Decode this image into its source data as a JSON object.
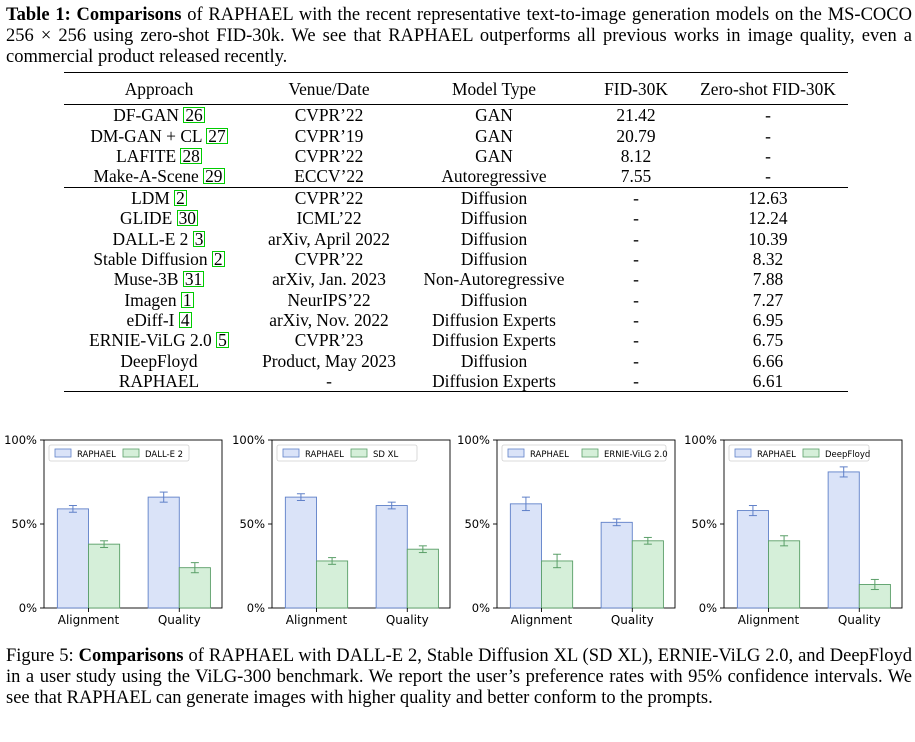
{
  "table": {
    "caption_label": "Table 1:",
    "caption_bold": "Comparisons",
    "caption_text": " of RAPHAEL with the recent representative text-to-image generation models on the MS-COCO 256 × 256 using zero-shot FID-30k. We see that RAPHAEL outperforms all previous works in image quality, even a commercial product released recently.",
    "headers": [
      "Approach",
      "Venue/Date",
      "Model Type",
      "FID-30K",
      "Zero-shot FID-30K"
    ],
    "group1": [
      {
        "name": "DF-GAN",
        "cite": "26",
        "venue": "CVPR’22",
        "type": "GAN",
        "fid": "21.42",
        "zs": "-"
      },
      {
        "name": "DM-GAN + CL",
        "cite": "27",
        "venue": "CVPR’19",
        "type": "GAN",
        "fid": "20.79",
        "zs": "-"
      },
      {
        "name": "LAFITE",
        "cite": "28",
        "venue": "CVPR’22",
        "type": "GAN",
        "fid": "8.12",
        "zs": "-"
      },
      {
        "name": "Make-A-Scene",
        "cite": "29",
        "venue": "ECCV’22",
        "type": "Autoregressive",
        "fid": "7.55",
        "zs": "-"
      }
    ],
    "group2": [
      {
        "name": "LDM",
        "cite": "2",
        "venue": "CVPR’22",
        "type": "Diffusion",
        "fid": "-",
        "zs": "12.63"
      },
      {
        "name": "GLIDE",
        "cite": "30",
        "venue": "ICML’22",
        "type": "Diffusion",
        "fid": "-",
        "zs": "12.24"
      },
      {
        "name": "DALL-E 2",
        "cite": "3",
        "venue": "arXiv, April 2022",
        "type": "Diffusion",
        "fid": "-",
        "zs": "10.39"
      },
      {
        "name": "Stable Diffusion",
        "cite": "2",
        "venue": "CVPR’22",
        "type": "Diffusion",
        "fid": "-",
        "zs": "8.32"
      },
      {
        "name": "Muse-3B",
        "cite": "31",
        "venue": "arXiv, Jan. 2023",
        "type": "Non-Autoregressive",
        "fid": "-",
        "zs": "7.88"
      },
      {
        "name": "Imagen",
        "cite": "1",
        "venue": "NeurIPS’22",
        "type": "Diffusion",
        "fid": "-",
        "zs": "7.27"
      },
      {
        "name": "eDiff-I",
        "cite": "4",
        "venue": "arXiv, Nov. 2022",
        "type": "Diffusion Experts",
        "fid": "-",
        "zs": "6.95"
      },
      {
        "name": "ERNIE-ViLG 2.0",
        "cite": "5",
        "venue": "CVPR’23",
        "type": "Diffusion Experts",
        "fid": "-",
        "zs": "6.75"
      },
      {
        "name": "DeepFloyd",
        "cite": "",
        "venue": "Product, May 2023",
        "type": "Diffusion",
        "fid": "-",
        "zs": "6.66"
      },
      {
        "name": "RAPHAEL",
        "cite": "",
        "venue": "-",
        "type": "Diffusion Experts",
        "fid": "-",
        "zs": "6.61"
      }
    ]
  },
  "figure": {
    "caption_label": "Figure 5:",
    "caption_bold": "Comparisons",
    "caption_text": " of RAPHAEL with DALL-E 2, Stable Diffusion XL (SD XL), ERNIE-ViLG 2.0, and DeepFloyd in a user study using the ViLG-300 benchmark. We report the user’s preference rates with 95% confidence intervals. We see that RAPHAEL can generate images with higher quality and better conform to the prompts."
  },
  "colors": {
    "raphael_fill": "#dae3f8",
    "raphael_edge": "#5f80c8",
    "other_fill": "#d5efd9",
    "other_edge": "#5a9f68"
  },
  "chart_data": [
    {
      "type": "bar",
      "categories": [
        "Alignment",
        "Quality"
      ],
      "series": [
        {
          "name": "RAPHAEL",
          "values": [
            59,
            66
          ],
          "errors": [
            2,
            3
          ]
        },
        {
          "name": "DALL-E 2",
          "values": [
            38,
            24
          ],
          "errors": [
            2,
            3
          ]
        }
      ],
      "yticks": [
        "0%",
        "50%",
        "100%"
      ],
      "ylim": [
        0,
        100
      ]
    },
    {
      "type": "bar",
      "categories": [
        "Alignment",
        "Quality"
      ],
      "series": [
        {
          "name": "RAPHAEL",
          "values": [
            66,
            61
          ],
          "errors": [
            2,
            2
          ]
        },
        {
          "name": "SD XL",
          "values": [
            28,
            35
          ],
          "errors": [
            2,
            2
          ]
        }
      ],
      "yticks": [
        "0%",
        "50%",
        "100%"
      ],
      "ylim": [
        0,
        100
      ]
    },
    {
      "type": "bar",
      "categories": [
        "Alignment",
        "Quality"
      ],
      "series": [
        {
          "name": "RAPHAEL",
          "values": [
            62,
            51
          ],
          "errors": [
            4,
            2
          ]
        },
        {
          "name": "ERNIE-ViLG 2.0",
          "values": [
            28,
            40
          ],
          "errors": [
            4,
            2
          ]
        }
      ],
      "yticks": [
        "0%",
        "50%",
        "100%"
      ],
      "ylim": [
        0,
        100
      ]
    },
    {
      "type": "bar",
      "categories": [
        "Alignment",
        "Quality"
      ],
      "series": [
        {
          "name": "RAPHAEL",
          "values": [
            58,
            81
          ],
          "errors": [
            3,
            3
          ]
        },
        {
          "name": "DeepFloyd",
          "values": [
            40,
            14
          ],
          "errors": [
            3,
            3
          ]
        }
      ],
      "yticks": [
        "0%",
        "50%",
        "100%"
      ],
      "ylim": [
        0,
        100
      ]
    }
  ]
}
